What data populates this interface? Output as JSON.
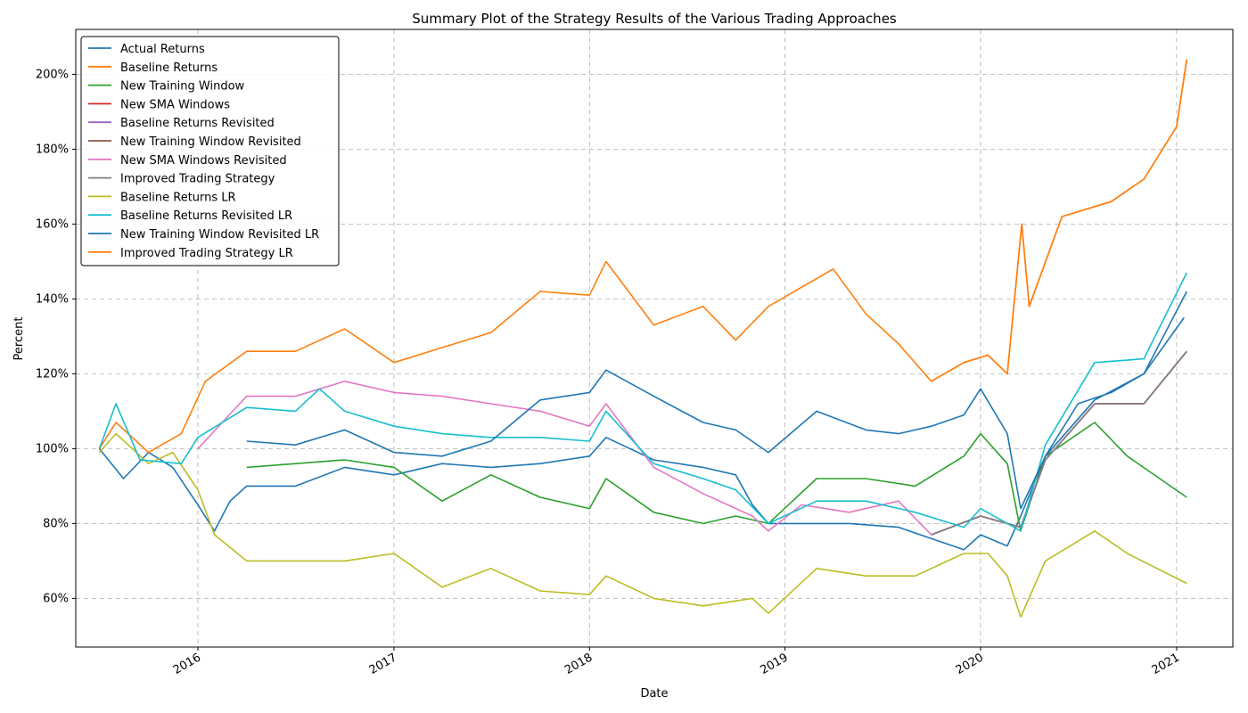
{
  "chart_data": {
    "type": "line",
    "title": "Summary Plot of the Strategy Results of the Various Trading Approaches",
    "xlabel": "Date",
    "ylabel": "Percent",
    "x_ticks": [
      "2016",
      "2017",
      "2018",
      "2019",
      "2020",
      "2021"
    ],
    "y_ticks": [
      "60%",
      "80%",
      "100%",
      "120%",
      "140%",
      "160%",
      "180%",
      "200%"
    ],
    "xlim": [
      "2015-05-18",
      "2021-04-16"
    ],
    "ylim": [
      47,
      212
    ],
    "grid": true,
    "legend_position": "top-left",
    "series": [
      {
        "name": "Actual Returns",
        "color": "#1f77b4",
        "x": [
          "2015-07-01",
          "2015-08-15",
          "2015-10-01",
          "2015-11-15",
          "2016-01-01",
          "2016-02-01",
          "2016-03-01",
          "2016-04-01",
          "2016-07-01",
          "2016-10-01",
          "2017-01-01",
          "2017-04-01",
          "2017-07-01",
          "2017-10-01",
          "2018-01-01",
          "2018-02-01",
          "2018-05-01",
          "2018-08-01",
          "2018-10-01",
          "2018-11-01",
          "2018-12-01",
          "2019-02-01",
          "2019-05-01",
          "2019-08-01",
          "2019-10-01",
          "2019-12-01",
          "2020-01-01",
          "2020-02-20",
          "2020-03-16",
          "2020-05-01",
          "2020-07-01",
          "2020-09-01",
          "2020-11-01",
          "2021-01-15"
        ],
        "values": [
          100,
          92,
          99,
          95,
          85,
          78,
          86,
          90,
          90,
          95,
          93,
          96,
          95,
          96,
          98,
          103,
          97,
          95,
          93,
          85,
          80,
          80,
          80,
          79,
          76,
          73,
          77,
          74,
          82,
          98,
          112,
          115,
          120,
          135
        ]
      },
      {
        "name": "Baseline Returns",
        "color": "#ff7f0e",
        "x": [
          "2015-07-01",
          "2015-08-01",
          "2015-10-01",
          "2015-12-01",
          "2016-01-15",
          "2016-04-01",
          "2016-07-01",
          "2016-10-01",
          "2017-01-01",
          "2017-04-01",
          "2017-07-01",
          "2017-10-01",
          "2018-01-01",
          "2018-02-01",
          "2018-05-01",
          "2018-08-01",
          "2018-10-01",
          "2018-12-01",
          "2019-04-01",
          "2019-06-01",
          "2019-08-01",
          "2019-10-01",
          "2019-12-01",
          "2020-01-15",
          "2020-02-20",
          "2020-03-18",
          "2020-04-01",
          "2020-06-01",
          "2020-09-01",
          "2020-11-01",
          "2021-01-01",
          "2021-01-20"
        ],
        "values": [
          100,
          107,
          99,
          104,
          118,
          126,
          126,
          132,
          123,
          127,
          131,
          142,
          141,
          150,
          133,
          138,
          129,
          138,
          148,
          136,
          128,
          118,
          123,
          125,
          120,
          160,
          138,
          162,
          166,
          172,
          186,
          204
        ]
      },
      {
        "name": "New Training Window",
        "color": "#2ca02c",
        "x": [
          "2016-04-01",
          "2016-07-01",
          "2016-10-01",
          "2017-01-01",
          "2017-04-01",
          "2017-07-01",
          "2017-10-01",
          "2018-01-01",
          "2018-02-01",
          "2018-05-01",
          "2018-08-01",
          "2018-10-01",
          "2018-12-01",
          "2019-03-01",
          "2019-06-01",
          "2019-09-01",
          "2019-12-01",
          "2020-01-01",
          "2020-02-20",
          "2020-03-16",
          "2020-05-01",
          "2020-08-01",
          "2020-10-01",
          "2021-01-20"
        ],
        "values": [
          95,
          96,
          97,
          95,
          86,
          93,
          87,
          84,
          92,
          83,
          80,
          82,
          80,
          92,
          92,
          90,
          98,
          104,
          96,
          78,
          98,
          107,
          98,
          87
        ]
      },
      {
        "name": "New SMA Windows",
        "color": "#d62728",
        "x": [
          "2019-10-01",
          "2020-01-01",
          "2020-03-16",
          "2020-05-01",
          "2020-08-01",
          "2020-11-01",
          "2021-01-20"
        ],
        "values": [
          77,
          82,
          79,
          97,
          112,
          112,
          126
        ]
      },
      {
        "name": "Baseline Returns Revisited",
        "color": "#9467bd",
        "x": [
          "2019-10-01",
          "2020-01-01",
          "2020-03-16",
          "2020-05-01",
          "2020-08-01",
          "2020-11-01",
          "2021-01-20"
        ],
        "values": [
          77,
          82,
          79,
          97,
          112,
          112,
          126
        ]
      },
      {
        "name": "New Training Window Revisited",
        "color": "#8c564b",
        "x": [
          "2019-10-01",
          "2020-01-01",
          "2020-03-16",
          "2020-05-01",
          "2020-08-01",
          "2020-11-01",
          "2021-01-20"
        ],
        "values": [
          77,
          82,
          79,
          97,
          112,
          112,
          126
        ]
      },
      {
        "name": "New SMA Windows Revisited",
        "color": "#e377c2",
        "x": [
          "2016-01-01",
          "2016-04-01",
          "2016-07-01",
          "2016-10-01",
          "2017-01-01",
          "2017-04-01",
          "2017-07-01",
          "2017-10-01",
          "2018-01-01",
          "2018-02-01",
          "2018-05-01",
          "2018-08-01",
          "2018-11-01",
          "2018-12-01",
          "2019-02-01",
          "2019-05-01",
          "2019-08-01",
          "2019-10-01",
          "2020-01-01",
          "2020-03-16",
          "2020-05-01",
          "2020-08-01",
          "2020-11-01",
          "2021-01-20"
        ],
        "values": [
          100,
          114,
          114,
          118,
          115,
          114,
          112,
          110,
          106,
          112,
          95,
          88,
          82,
          78,
          85,
          83,
          86,
          77,
          82,
          79,
          97,
          112,
          112,
          126
        ]
      },
      {
        "name": "Improved Trading Strategy",
        "color": "#7f7f7f",
        "x": [
          "2019-10-01",
          "2020-01-01",
          "2020-03-16",
          "2020-05-01",
          "2020-08-01",
          "2020-11-01",
          "2021-01-20"
        ],
        "values": [
          77,
          82,
          79,
          97,
          112,
          112,
          126
        ]
      },
      {
        "name": "Baseline Returns LR",
        "color": "#bcbd22",
        "x": [
          "2015-07-01",
          "2015-08-01",
          "2015-10-01",
          "2015-11-15",
          "2016-01-01",
          "2016-02-01",
          "2016-04-01",
          "2016-07-01",
          "2016-10-01",
          "2017-01-01",
          "2017-04-01",
          "2017-07-01",
          "2017-10-01",
          "2018-01-01",
          "2018-02-01",
          "2018-05-01",
          "2018-08-01",
          "2018-11-01",
          "2018-12-01",
          "2019-03-01",
          "2019-06-01",
          "2019-09-01",
          "2019-12-01",
          "2020-01-15",
          "2020-02-20",
          "2020-03-16",
          "2020-05-01",
          "2020-08-01",
          "2020-10-01",
          "2021-01-20"
        ],
        "values": [
          99,
          104,
          96,
          99,
          89,
          77,
          70,
          70,
          70,
          72,
          63,
          68,
          62,
          61,
          66,
          60,
          58,
          60,
          56,
          68,
          66,
          66,
          72,
          72,
          66,
          55,
          70,
          78,
          72,
          64
        ]
      },
      {
        "name": "Baseline Returns Revisited LR",
        "color": "#17becf",
        "x": [
          "2015-07-01",
          "2015-08-01",
          "2015-09-15",
          "2015-12-01",
          "2016-01-01",
          "2016-04-01",
          "2016-07-01",
          "2016-08-15",
          "2016-10-01",
          "2017-01-01",
          "2017-04-01",
          "2017-07-01",
          "2017-10-01",
          "2018-01-01",
          "2018-02-01",
          "2018-05-01",
          "2018-08-01",
          "2018-10-01",
          "2018-12-01",
          "2019-03-01",
          "2019-06-01",
          "2019-09-01",
          "2019-12-01",
          "2020-01-01",
          "2020-03-16",
          "2020-05-01",
          "2020-08-01",
          "2020-11-01",
          "2021-01-20"
        ],
        "values": [
          100,
          112,
          97,
          96,
          103,
          111,
          110,
          116,
          110,
          106,
          104,
          103,
          103,
          102,
          110,
          96,
          92,
          89,
          80,
          86,
          86,
          83,
          79,
          84,
          78,
          101,
          123,
          124,
          147
        ]
      },
      {
        "name": "New Training Window Revisited LR",
        "color": "#1f77b4",
        "x": [
          "2016-04-01",
          "2016-07-01",
          "2016-10-01",
          "2017-01-01",
          "2017-04-01",
          "2017-07-01",
          "2017-10-01",
          "2018-01-01",
          "2018-02-01",
          "2018-05-01",
          "2018-08-01",
          "2018-10-01",
          "2018-12-01",
          "2019-03-01",
          "2019-06-01",
          "2019-08-01",
          "2019-10-01",
          "2019-12-01",
          "2020-01-01",
          "2020-02-20",
          "2020-03-16",
          "2020-05-01",
          "2020-08-01",
          "2020-11-01",
          "2021-01-20"
        ],
        "values": [
          102,
          101,
          105,
          99,
          98,
          102,
          113,
          115,
          121,
          114,
          107,
          105,
          99,
          110,
          105,
          104,
          106,
          109,
          116,
          104,
          84,
          98,
          113,
          120,
          142
        ]
      },
      {
        "name": "Improved Trading Strategy LR",
        "color": "#ff7f0e",
        "x": [
          "2019-10-01",
          "2019-12-01",
          "2020-01-15",
          "2020-02-20",
          "2020-03-18",
          "2020-04-01",
          "2020-06-01",
          "2020-09-01",
          "2020-11-01",
          "2021-01-01",
          "2021-01-20"
        ],
        "values": [
          118,
          123,
          125,
          120,
          160,
          138,
          162,
          166,
          172,
          186,
          204
        ]
      }
    ]
  }
}
